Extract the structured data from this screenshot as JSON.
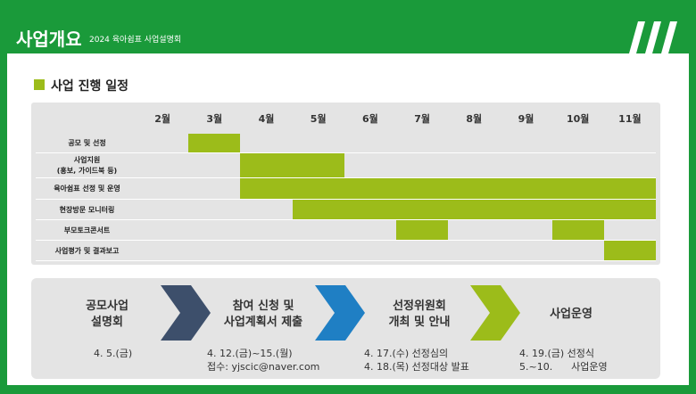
{
  "header": {
    "title": "사업개요",
    "subtitle": "2024 육아쉼표 사업설명회"
  },
  "schedule": {
    "heading": "사업 진행 일정",
    "months": [
      "2월",
      "3월",
      "4월",
      "5월",
      "6월",
      "7월",
      "8월",
      "9월",
      "10월",
      "11월"
    ],
    "rows": [
      {
        "label": [
          "공모 및 선정"
        ],
        "bars": [
          [
            "3월",
            "3월"
          ]
        ]
      },
      {
        "label": [
          "사업지원",
          "(홍보, 가이드북 등)"
        ],
        "bars": [
          [
            "4월",
            "5월"
          ]
        ]
      },
      {
        "label": [
          "육아쉼표 선정 및 운영"
        ],
        "bars": [
          [
            "4월",
            "11월"
          ]
        ]
      },
      {
        "label": [
          "현장방문 모니터링"
        ],
        "bars": [
          [
            "5월",
            "11월"
          ]
        ]
      },
      {
        "label": [
          "부모토크콘서트"
        ],
        "bars": [
          [
            "7월",
            "7월"
          ],
          [
            "10월",
            "10월"
          ]
        ]
      },
      {
        "label": [
          "사업평가 및 결과보고"
        ],
        "bars": [
          [
            "11월",
            "11월"
          ]
        ]
      }
    ]
  },
  "process": {
    "steps": [
      {
        "title": [
          "공모사업",
          "설명회"
        ],
        "details": [
          "4. 5.(금)"
        ]
      },
      {
        "title": [
          "참여 신청 및",
          "사업계획서 제출"
        ],
        "details": [
          "4. 12.(금)~15.(월)",
          "접수: yjscic@naver.com"
        ]
      },
      {
        "title": [
          "선정위원회",
          "개최 및 안내"
        ],
        "details": [
          "4. 17.(수) 선정심의",
          "4. 18.(목) 선정대상 발표"
        ]
      },
      {
        "title": [
          "사업운영"
        ],
        "details": [
          "4. 19.(금) 선정식",
          "5.~10.      사업운영"
        ]
      }
    ]
  }
}
